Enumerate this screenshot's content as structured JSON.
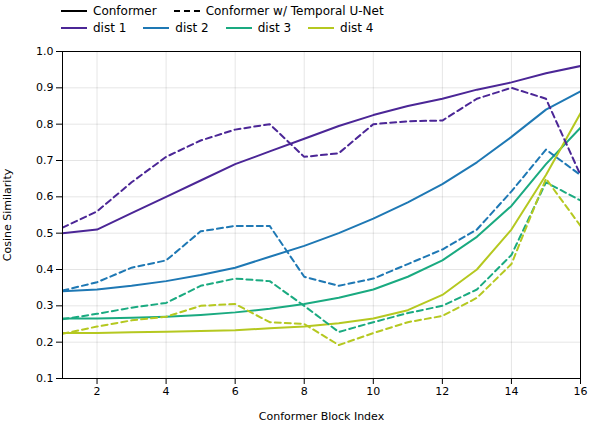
{
  "chart_data": {
    "type": "line",
    "xlabel": "Conformer Block Index",
    "ylabel": "Cosine Similarity",
    "x": [
      1,
      2,
      3,
      4,
      5,
      6,
      7,
      8,
      9,
      10,
      11,
      12,
      13,
      14,
      15,
      16
    ],
    "xlim": [
      1,
      16
    ],
    "ylim": [
      0.1,
      1.0
    ],
    "xticks": [
      2,
      4,
      6,
      8,
      10,
      12,
      14,
      16
    ],
    "yticks": [
      0.1,
      0.2,
      0.3,
      0.4,
      0.5,
      0.6,
      0.7,
      0.8,
      0.9,
      {
        "value": 1.0,
        "label": "1.0"
      }
    ],
    "grid": true,
    "legend": "top",
    "series": [
      {
        "name": "Conformer",
        "line_style": "solid",
        "series": [
          {
            "name": "dist 1",
            "color": "#4b2696",
            "values": [
              0.5,
              0.51,
              0.555,
              0.6,
              0.645,
              0.69,
              0.725,
              0.76,
              0.795,
              0.825,
              0.85,
              0.87,
              0.895,
              0.915,
              0.94,
              0.96
            ]
          },
          {
            "name": "dist 2",
            "color": "#1e78b4",
            "values": [
              0.34,
              0.345,
              0.355,
              0.368,
              0.385,
              0.405,
              0.435,
              0.465,
              0.5,
              0.54,
              0.585,
              0.635,
              0.695,
              0.765,
              0.84,
              0.89
            ]
          },
          {
            "name": "dist 3",
            "color": "#1aaa80",
            "values": [
              0.265,
              0.265,
              0.267,
              0.27,
              0.275,
              0.282,
              0.292,
              0.305,
              0.322,
              0.345,
              0.38,
              0.425,
              0.49,
              0.575,
              0.69,
              0.79
            ]
          },
          {
            "name": "dist 4",
            "color": "#b5c820",
            "values": [
              0.225,
              0.225,
              0.227,
              0.229,
              0.231,
              0.233,
              0.238,
              0.243,
              0.252,
              0.265,
              0.288,
              0.33,
              0.4,
              0.51,
              0.66,
              0.83
            ]
          }
        ]
      },
      {
        "name": "Conformer w/ Temporal U-Net",
        "line_style": "dashed",
        "series": [
          {
            "name": "dist 1",
            "color": "#4b2696",
            "values": [
              0.515,
              0.56,
              0.64,
              0.71,
              0.755,
              0.785,
              0.8,
              0.71,
              0.72,
              0.8,
              0.808,
              0.81,
              0.87,
              0.9,
              0.87,
              0.66
            ]
          },
          {
            "name": "dist 2",
            "color": "#1e78b4",
            "values": [
              0.342,
              0.365,
              0.405,
              0.425,
              0.505,
              0.52,
              0.52,
              0.38,
              0.355,
              0.375,
              0.415,
              0.455,
              0.51,
              0.615,
              0.73,
              0.66
            ]
          },
          {
            "name": "dist 3",
            "color": "#1aaa80",
            "values": [
              0.263,
              0.278,
              0.295,
              0.308,
              0.355,
              0.375,
              0.368,
              0.3,
              0.228,
              0.255,
              0.28,
              0.3,
              0.345,
              0.44,
              0.64,
              0.59
            ]
          },
          {
            "name": "dist 4",
            "color": "#b5c820",
            "values": [
              0.223,
              0.243,
              0.26,
              0.27,
              0.3,
              0.305,
              0.255,
              0.25,
              0.192,
              0.225,
              0.255,
              0.272,
              0.322,
              0.415,
              0.65,
              0.52
            ]
          }
        ]
      }
    ]
  }
}
